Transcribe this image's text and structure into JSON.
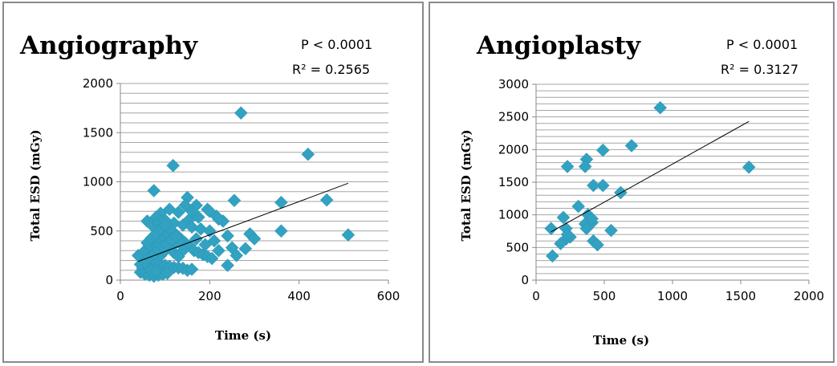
{
  "chart_data": [
    {
      "type": "scatter",
      "title": "Angiography",
      "annotations": [
        "P < 0.0001",
        "R² = 0.2565"
      ],
      "xlabel": "Time (s)",
      "ylabel": "Total ESD (mGy)",
      "xlim": [
        0,
        600
      ],
      "ylim": [
        0,
        2000
      ],
      "xticks": [
        0,
        200,
        400,
        600
      ],
      "yticks": [
        0,
        500,
        1000,
        1500,
        2000
      ],
      "ygrid_step": 100,
      "grid": true,
      "marker_color": "#31a2c2",
      "trendline": {
        "x": [
          40,
          510
        ],
        "y": [
          190,
          985
        ]
      },
      "points": [
        [
          270,
          1700
        ],
        [
          420,
          1280
        ],
        [
          118,
          1165
        ],
        [
          75,
          910
        ],
        [
          150,
          840
        ],
        [
          255,
          810
        ],
        [
          360,
          790
        ],
        [
          462,
          815
        ],
        [
          170,
          760
        ],
        [
          195,
          720
        ],
        [
          215,
          650
        ],
        [
          230,
          600
        ],
        [
          155,
          620
        ],
        [
          130,
          690
        ],
        [
          110,
          720
        ],
        [
          90,
          680
        ],
        [
          80,
          640
        ],
        [
          60,
          600
        ],
        [
          70,
          560
        ],
        [
          85,
          580
        ],
        [
          100,
          610
        ],
        [
          120,
          580
        ],
        [
          140,
          560
        ],
        [
          160,
          540
        ],
        [
          180,
          520
        ],
        [
          200,
          500
        ],
        [
          240,
          450
        ],
        [
          290,
          470
        ],
        [
          300,
          420
        ],
        [
          360,
          500
        ],
        [
          510,
          460
        ],
        [
          210,
          400
        ],
        [
          250,
          330
        ],
        [
          280,
          320
        ],
        [
          240,
          150
        ],
        [
          50,
          260
        ],
        [
          40,
          250
        ],
        [
          55,
          300
        ],
        [
          65,
          350
        ],
        [
          75,
          400
        ],
        [
          85,
          420
        ],
        [
          95,
          450
        ],
        [
          105,
          480
        ],
        [
          115,
          500
        ],
        [
          125,
          460
        ],
        [
          135,
          420
        ],
        [
          145,
          380
        ],
        [
          155,
          350
        ],
        [
          165,
          300
        ],
        [
          175,
          280
        ],
        [
          185,
          260
        ],
        [
          195,
          240
        ],
        [
          205,
          220
        ],
        [
          60,
          200
        ],
        [
          70,
          180
        ],
        [
          80,
          170
        ],
        [
          90,
          160
        ],
        [
          100,
          150
        ],
        [
          110,
          140
        ],
        [
          120,
          130
        ],
        [
          130,
          125
        ],
        [
          140,
          120
        ],
        [
          150,
          100
        ],
        [
          160,
          110
        ],
        [
          45,
          80
        ],
        [
          55,
          60
        ],
        [
          65,
          50
        ],
        [
          75,
          40
        ],
        [
          85,
          50
        ],
        [
          95,
          60
        ],
        [
          105,
          70
        ],
        [
          50,
          120
        ],
        [
          60,
          140
        ],
        [
          70,
          100
        ],
        [
          80,
          90
        ],
        [
          90,
          250
        ],
        [
          100,
          300
        ],
        [
          110,
          330
        ],
        [
          120,
          360
        ],
        [
          130,
          390
        ],
        [
          140,
          300
        ],
        [
          60,
          380
        ],
        [
          70,
          430
        ],
        [
          80,
          470
        ],
        [
          90,
          520
        ],
        [
          100,
          560
        ],
        [
          110,
          330
        ],
        [
          120,
          280
        ],
        [
          130,
          240
        ],
        [
          45,
          160
        ],
        [
          55,
          180
        ],
        [
          65,
          230
        ],
        [
          75,
          270
        ],
        [
          85,
          310
        ],
        [
          95,
          340
        ],
        [
          105,
          370
        ],
        [
          115,
          410
        ],
        [
          125,
          440
        ],
        [
          170,
          420
        ],
        [
          190,
          360
        ],
        [
          220,
          300
        ],
        [
          260,
          250
        ],
        [
          175,
          640
        ],
        [
          200,
          700
        ],
        [
          220,
          620
        ],
        [
          145,
          760
        ],
        [
          160,
          700
        ]
      ]
    },
    {
      "type": "scatter",
      "title": "Angioplasty",
      "annotations": [
        "P < 0.0001",
        "R² = 0.3127"
      ],
      "xlabel": "Time (s)",
      "ylabel": "Total ESD (mGy)",
      "xlim": [
        0,
        2000
      ],
      "ylim": [
        0,
        3000
      ],
      "xticks": [
        0,
        500,
        1000,
        1500,
        2000
      ],
      "yticks": [
        0,
        500,
        1000,
        1500,
        2000,
        2500,
        3000
      ],
      "ygrid_step": 100,
      "grid": true,
      "marker_color": "#31a2c2",
      "trendline": {
        "x": [
          110,
          1560
        ],
        "y": [
          740,
          2430
        ]
      },
      "points": [
        [
          910,
          2640
        ],
        [
          700,
          2060
        ],
        [
          490,
          1990
        ],
        [
          1560,
          1730
        ],
        [
          370,
          1850
        ],
        [
          360,
          1740
        ],
        [
          230,
          1740
        ],
        [
          490,
          1450
        ],
        [
          420,
          1450
        ],
        [
          620,
          1340
        ],
        [
          310,
          1130
        ],
        [
          380,
          1000
        ],
        [
          200,
          960
        ],
        [
          410,
          880
        ],
        [
          360,
          860
        ],
        [
          110,
          790
        ],
        [
          220,
          790
        ],
        [
          370,
          790
        ],
        [
          550,
          760
        ],
        [
          250,
          660
        ],
        [
          220,
          630
        ],
        [
          420,
          600
        ],
        [
          180,
          560
        ],
        [
          450,
          540
        ],
        [
          120,
          370
        ],
        [
          410,
          940
        ],
        [
          230,
          700
        ]
      ]
    }
  ]
}
